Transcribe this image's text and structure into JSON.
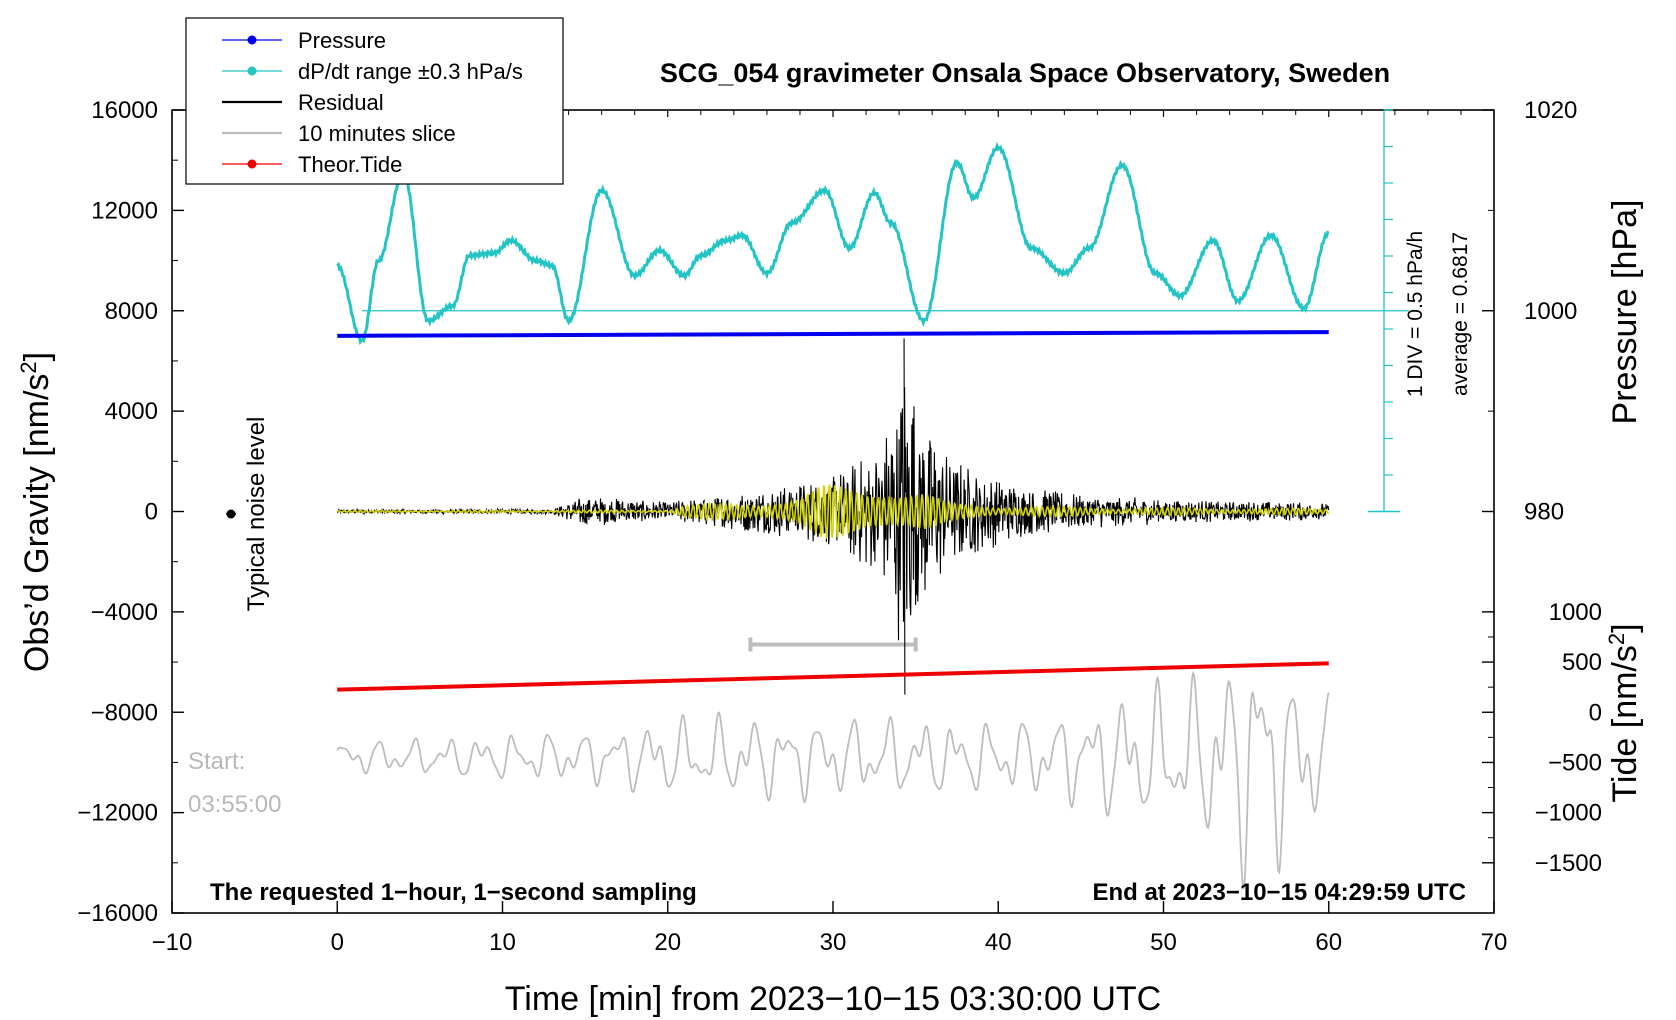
{
  "chart_data": {
    "type": "line",
    "title": "SCG_054 gravimeter Onsala Space Observatory, Sweden",
    "xlabel": "Time [min] from 2023−10−15 03:30:00 UTC",
    "xlim": [
      -10,
      70
    ],
    "xticks": [
      -10,
      0,
      10,
      20,
      30,
      40,
      50,
      60,
      70
    ],
    "xtick_labels": [
      "−10",
      "0",
      "10",
      "20",
      "30",
      "40",
      "50",
      "60",
      "70"
    ],
    "left_axis": {
      "label_main": "Obs’d Gravity [nm/s",
      "label_sup": "2",
      "label_end": "]",
      "ylim": [
        -16000,
        16000
      ],
      "ticks": [
        16000,
        12000,
        8000,
        4000,
        0,
        -4000,
        -8000,
        -12000,
        -16000
      ],
      "tick_labels": [
        "16000",
        "12000",
        "8000",
        "4000",
        "0",
        "−4000",
        "−8000",
        "−12000",
        "−16000"
      ]
    },
    "pressure_axis": {
      "label": "Pressure [hPa]",
      "ticks": [
        1020,
        1000,
        980
      ],
      "tick_labels": [
        "1020",
        "1000",
        "980"
      ]
    },
    "tide_axis": {
      "label_main": "Tide [nm/s",
      "label_sup": "2",
      "label_end": "]",
      "ticks": [
        1000,
        500,
        0,
        -500,
        -1000,
        -1500
      ],
      "tick_labels": [
        "1000",
        "500",
        "0",
        "−500",
        "−1000",
        "−1500"
      ]
    },
    "legend": {
      "position": "top-left",
      "entries": [
        {
          "label": "Pressure",
          "color": "#0000ee",
          "marker": "dot"
        },
        {
          "label": "dP/dt range ±0.3 hPa/s",
          "color": "#22c4c4",
          "marker": "dot"
        },
        {
          "label": "Residual",
          "color": "#000000",
          "marker": "none"
        },
        {
          "label": "10 minutes slice",
          "color": "#bdbdbd",
          "marker": "none"
        },
        {
          "label": "Theor.Tide",
          "color": "#ee0000",
          "marker": "dot"
        }
      ]
    },
    "series": [
      {
        "name": "Pressure",
        "color": "#0000ee",
        "x": [
          0,
          60
        ],
        "gravity_scale_values": [
          7000,
          7150
        ]
      },
      {
        "name": "Theor.Tide",
        "color": "#ee0000",
        "x": [
          0,
          60
        ],
        "gravity_scale_values": [
          -7100,
          -6050
        ]
      },
      {
        "name": "dP/dt",
        "color": "#22c4c4",
        "x": [
          0,
          1.5,
          2.5,
          4.0,
          5.5,
          7.0,
          8.0,
          9.5,
          10.5,
          12.0,
          13.0,
          14.0,
          16.0,
          18.0,
          19.5,
          21.0,
          22.0,
          23.5,
          24.5,
          26.0,
          27.5,
          29.5,
          31.0,
          32.5,
          33.5,
          35.5,
          37.5,
          38.5,
          40.0,
          42.0,
          44.0,
          45.5,
          47.5,
          49.5,
          51.0,
          53.0,
          54.5,
          56.5,
          58.5,
          60.0
        ],
        "gravity_scale_values": [
          9800,
          6800,
          10000,
          13500,
          7600,
          8200,
          10200,
          10300,
          10800,
          10000,
          9800,
          7600,
          12800,
          9400,
          10400,
          9400,
          10200,
          10800,
          11000,
          9500,
          11500,
          12800,
          10500,
          12700,
          11500,
          7600,
          13900,
          12500,
          14500,
          10500,
          9500,
          10500,
          13800,
          9500,
          8600,
          10800,
          8400,
          11000,
          8100,
          11100
        ]
      },
      {
        "name": "Residual",
        "color": "#000000",
        "envelope": {
          "x": [
            0,
            13,
            14,
            15,
            20,
            22,
            26,
            28,
            30,
            32,
            33.5,
            34.3,
            35.2,
            37,
            41,
            45,
            50,
            55,
            60
          ],
          "amplitude": [
            80,
            100,
            380,
            650,
            380,
            560,
            950,
            1150,
            1500,
            2300,
            3500,
            6500,
            4200,
            2200,
            1100,
            700,
            500,
            420,
            350
          ]
        }
      },
      {
        "name": "Filtered (yellow)",
        "color": "#d4d400",
        "envelope": {
          "x": [
            0,
            20,
            21,
            25,
            28,
            29.5,
            32,
            33,
            34.3,
            35.5,
            37,
            40,
            45,
            50,
            60
          ],
          "amplitude": [
            30,
            60,
            280,
            350,
            650,
            1100,
            1000,
            1150,
            900,
            800,
            350,
            250,
            180,
            150,
            120
          ]
        }
      },
      {
        "name": "10 minutes slice",
        "color": "#bdbdbd",
        "slice_range_min": [
          25,
          35
        ],
        "tide_scale": {
          "x": [
            0,
            5,
            10,
            15,
            20,
            25,
            30,
            35,
            40,
            44,
            48,
            52,
            54.5,
            55.5,
            56.5,
            57.5,
            60
          ],
          "amplitude": [
            180,
            200,
            250,
            280,
            420,
            450,
            430,
            420,
            380,
            480,
            720,
            860,
            1200,
            1500,
            1400,
            900,
            700
          ]
        }
      }
    ],
    "annotations": {
      "noise_label": "Typical noise level",
      "div_label": "1 DIV = 0.5 hPa/h",
      "average_label": "average = 0.6817",
      "requested_label": "The requested 1−hour, 1−second sampling",
      "end_label": "End at 2023−10−15 04:29:59 UTC",
      "start_label": "Start:",
      "start_time": "03:55:00"
    }
  }
}
